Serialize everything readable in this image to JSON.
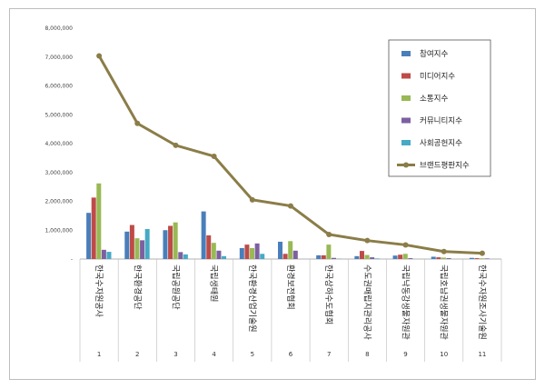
{
  "chart_data": {
    "type": "bar",
    "categories": [
      "1",
      "2",
      "3",
      "4",
      "5",
      "6",
      "7",
      "8",
      "9",
      "10",
      "11"
    ],
    "category_labels": [
      "한국수자원공사",
      "한국환경공단",
      "국립공원공단",
      "국립생태원",
      "한국환경산업기술원",
      "환경보전협회",
      "한국상하수도협회",
      "수도권매립지관리공사",
      "국립낙동강생물자원관",
      "국립호남권생물자원관",
      "한국수자원조사기술원"
    ],
    "ylim": [
      0,
      8000000
    ],
    "yticks": [
      0,
      1000000,
      2000000,
      3000000,
      4000000,
      5000000,
      6000000,
      7000000,
      8000000
    ],
    "ytick_labels": [
      "-",
      "1,000,000",
      "2,000,000",
      "3,000,000",
      "4,000,000",
      "5,000,000",
      "6,000,000",
      "7,000,000",
      "8,000,000"
    ],
    "legend_position": "top-right",
    "series": [
      {
        "name": "참여지수",
        "kind": "bar",
        "color": "#4a7ebb",
        "values": [
          1600000,
          950000,
          1000000,
          1650000,
          380000,
          600000,
          130000,
          100000,
          120000,
          80000,
          40000
        ]
      },
      {
        "name": "미디어지수",
        "kind": "bar",
        "color": "#be4b48",
        "values": [
          2130000,
          1180000,
          1150000,
          820000,
          500000,
          180000,
          130000,
          280000,
          150000,
          60000,
          30000
        ]
      },
      {
        "name": "소통지수",
        "kind": "bar",
        "color": "#98b954",
        "values": [
          2620000,
          720000,
          1270000,
          560000,
          380000,
          620000,
          500000,
          140000,
          180000,
          50000,
          25000
        ]
      },
      {
        "name": "커뮤니티지수",
        "kind": "bar",
        "color": "#7d60a0",
        "values": [
          320000,
          650000,
          240000,
          290000,
          540000,
          290000,
          40000,
          60000,
          30000,
          30000,
          20000
        ]
      },
      {
        "name": "사회공헌지수",
        "kind": "bar",
        "color": "#46aac5",
        "values": [
          250000,
          1040000,
          160000,
          100000,
          180000,
          0,
          10000,
          20000,
          0,
          0,
          0
        ]
      },
      {
        "name": "브랜드평판지수",
        "kind": "line",
        "color": "#8b7d48",
        "values": [
          7040000,
          4700000,
          3940000,
          3560000,
          2050000,
          1840000,
          850000,
          640000,
          490000,
          260000,
          200000
        ]
      }
    ]
  }
}
